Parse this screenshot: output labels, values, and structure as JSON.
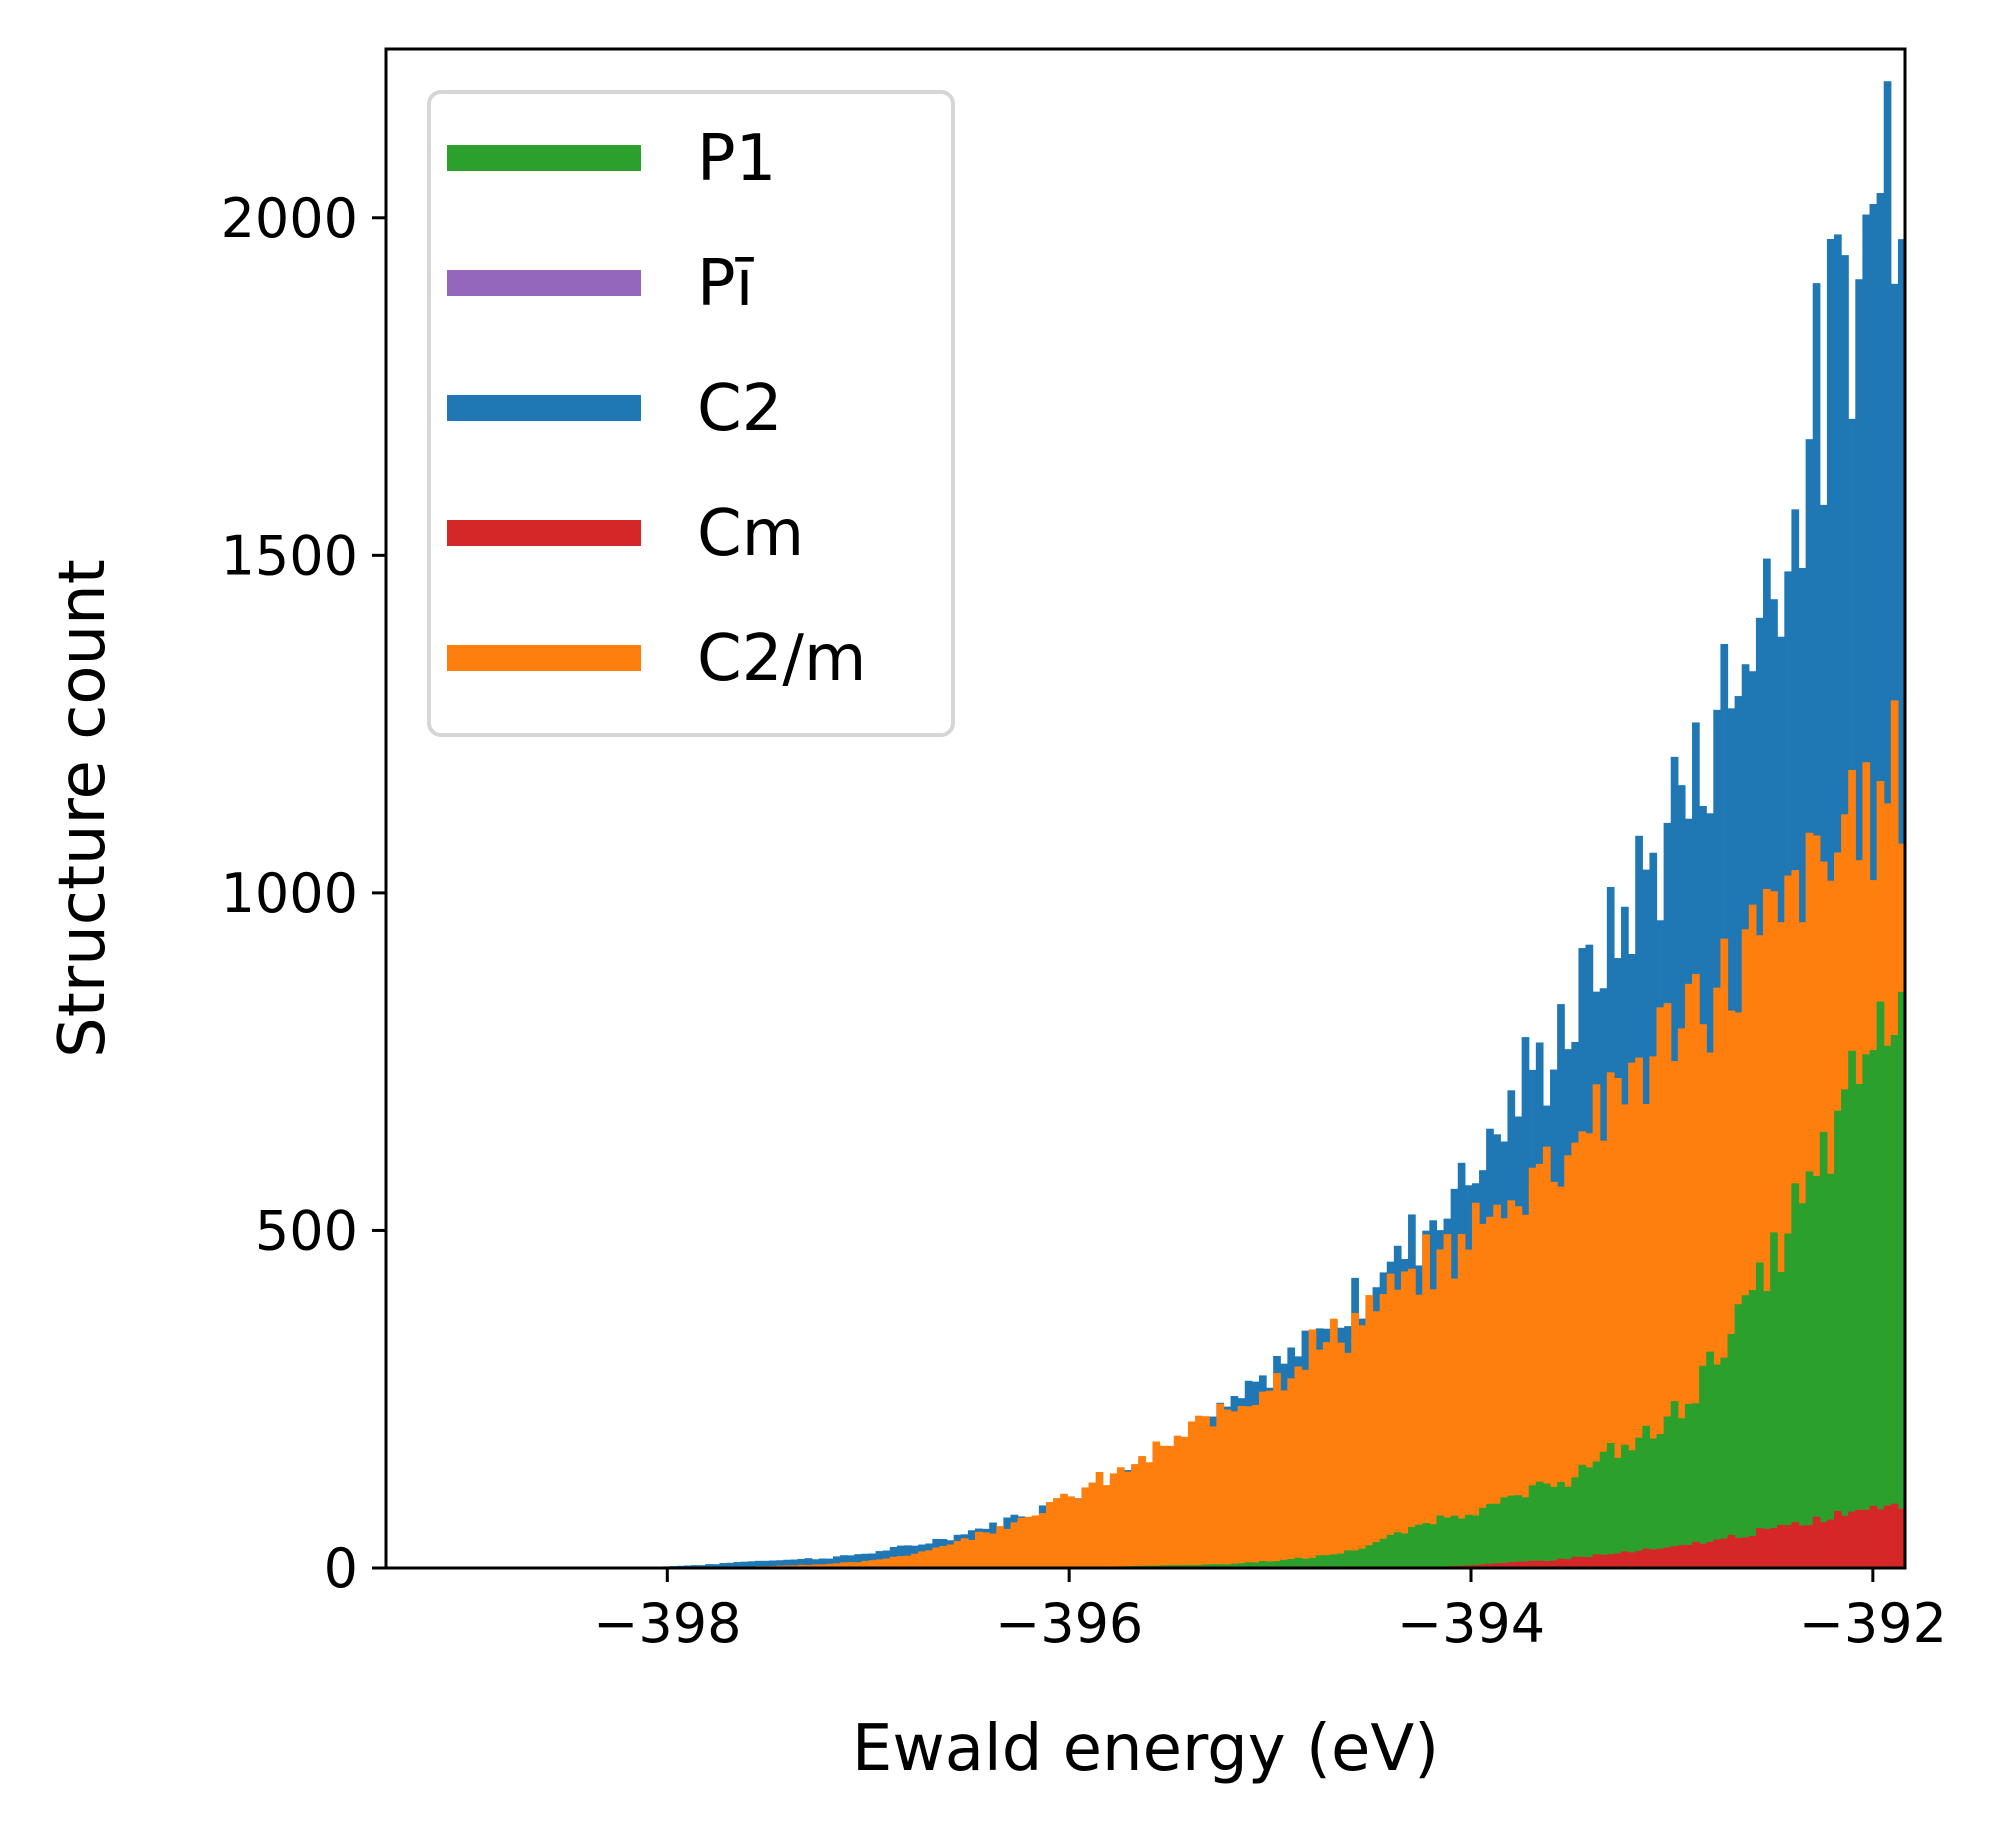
{
  "chart_data": {
    "type": "histogram",
    "xlabel": "Ewald energy (eV)",
    "ylabel": "Structure count",
    "xlim": [
      -399.4,
      -391.84
    ],
    "ylim": [
      0,
      2250
    ],
    "x_ticks": [
      -398,
      -396,
      -394,
      -392
    ],
    "x_tick_labels": [
      "−398",
      "−396",
      "−394",
      "−392"
    ],
    "y_ticks": [
      0,
      500,
      1000,
      1500,
      2000
    ],
    "y_tick_labels": [
      "0",
      "500",
      "1000",
      "1500",
      "2000"
    ],
    "grid": false,
    "legend_position": "top-left",
    "bin_range": [
      -398.2,
      -391.84
    ],
    "series": [
      {
        "name": "P1",
        "color": "#2ca02c",
        "z_order": 3,
        "points": [
          [
            -398.2,
            0
          ],
          [
            -396.2,
            0
          ],
          [
            -395.8,
            2
          ],
          [
            -395.2,
            6
          ],
          [
            -394.8,
            15
          ],
          [
            -394.6,
            25
          ],
          [
            -394.4,
            45
          ],
          [
            -394.2,
            70
          ],
          [
            -394.0,
            85
          ],
          [
            -393.8,
            100
          ],
          [
            -393.6,
            125
          ],
          [
            -393.4,
            150
          ],
          [
            -393.2,
            185
          ],
          [
            -393.0,
            220
          ],
          [
            -392.8,
            310
          ],
          [
            -392.6,
            400
          ],
          [
            -392.5,
            450
          ],
          [
            -392.4,
            520
          ],
          [
            -392.3,
            560
          ],
          [
            -392.2,
            640
          ],
          [
            -392.1,
            700
          ],
          [
            -392.0,
            790
          ],
          [
            -391.84,
            830
          ]
        ]
      },
      {
        "name": "Pī",
        "color": "#9467bd",
        "z_order": 1,
        "points": [
          [
            -398.2,
            0
          ],
          [
            -391.84,
            0
          ]
        ]
      },
      {
        "name": "C2",
        "color": "#1f77b4",
        "z_order": 0,
        "points": [
          [
            -398.2,
            0
          ],
          [
            -397.8,
            5
          ],
          [
            -397.6,
            10
          ],
          [
            -397.2,
            15
          ],
          [
            -397.0,
            22
          ],
          [
            -396.8,
            32
          ],
          [
            -396.6,
            45
          ],
          [
            -396.4,
            62
          ],
          [
            -396.2,
            82
          ],
          [
            -396.0,
            105
          ],
          [
            -395.8,
            130
          ],
          [
            -395.6,
            160
          ],
          [
            -395.4,
            195
          ],
          [
            -395.2,
            235
          ],
          [
            -395.0,
            280
          ],
          [
            -394.8,
            330
          ],
          [
            -394.6,
            390
          ],
          [
            -394.4,
            450
          ],
          [
            -394.2,
            520
          ],
          [
            -394.0,
            595
          ],
          [
            -393.8,
            680
          ],
          [
            -393.6,
            770
          ],
          [
            -393.4,
            870
          ],
          [
            -393.2,
            985
          ],
          [
            -393.0,
            1105
          ],
          [
            -392.8,
            1240
          ],
          [
            -392.6,
            1390
          ],
          [
            -392.5,
            1480
          ],
          [
            -392.4,
            1570
          ],
          [
            -392.3,
            1690
          ],
          [
            -392.2,
            1800
          ],
          [
            -392.1,
            1900
          ],
          [
            -392.0,
            2020
          ],
          [
            -391.9,
            2130
          ],
          [
            -391.84,
            2150
          ]
        ]
      },
      {
        "name": "Cm",
        "color": "#d62728",
        "z_order": 4,
        "points": [
          [
            -398.2,
            0
          ],
          [
            -394.4,
            0
          ],
          [
            -394.0,
            4
          ],
          [
            -393.8,
            8
          ],
          [
            -393.6,
            12
          ],
          [
            -393.4,
            18
          ],
          [
            -393.2,
            24
          ],
          [
            -393.0,
            30
          ],
          [
            -392.8,
            40
          ],
          [
            -392.6,
            52
          ],
          [
            -392.4,
            62
          ],
          [
            -392.2,
            78
          ],
          [
            -392.0,
            92
          ],
          [
            -391.84,
            100
          ]
        ]
      },
      {
        "name": "C2/m",
        "color": "#ff7f0e",
        "z_order": 2,
        "points": [
          [
            -398.2,
            0
          ],
          [
            -397.6,
            2
          ],
          [
            -397.2,
            6
          ],
          [
            -397.0,
            10
          ],
          [
            -396.8,
            20
          ],
          [
            -396.6,
            35
          ],
          [
            -396.4,
            55
          ],
          [
            -396.2,
            80
          ],
          [
            -396.0,
            105
          ],
          [
            -395.8,
            135
          ],
          [
            -395.6,
            165
          ],
          [
            -395.4,
            200
          ],
          [
            -395.2,
            240
          ],
          [
            -395.0,
            280
          ],
          [
            -394.8,
            320
          ],
          [
            -394.6,
            360
          ],
          [
            -394.4,
            400
          ],
          [
            -394.2,
            445
          ],
          [
            -394.0,
            495
          ],
          [
            -393.8,
            550
          ],
          [
            -393.6,
            610
          ],
          [
            -393.4,
            670
          ],
          [
            -393.2,
            730
          ],
          [
            -393.0,
            790
          ],
          [
            -392.8,
            850
          ],
          [
            -392.6,
            920
          ],
          [
            -392.4,
            990
          ],
          [
            -392.2,
            1060
          ],
          [
            -392.0,
            1140
          ],
          [
            -391.84,
            1180
          ]
        ]
      }
    ]
  }
}
